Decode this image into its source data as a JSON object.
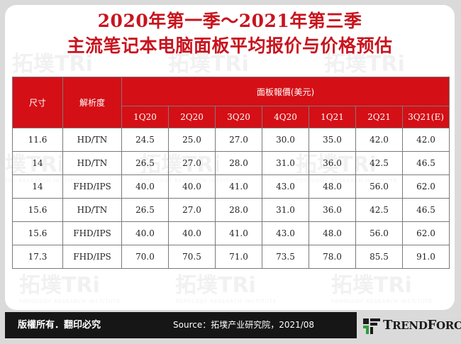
{
  "title": {
    "line1": "2020年第一季～2021年第三季",
    "line2": "主流笔记本电脑面板平均报价与价格预估"
  },
  "watermark_text": "拓墣TRi",
  "watermark_subtext": "TOPOLOGY RESEARCH INSTITUTE",
  "table": {
    "header_size": "尺寸",
    "header_resolution": "解析度",
    "header_price": "面板報價(美元)",
    "quarters": [
      "1Q20",
      "2Q20",
      "3Q20",
      "4Q20",
      "1Q21",
      "2Q21",
      "3Q21(E)"
    ],
    "rows": [
      {
        "size": "11.6",
        "resolution": "HD/TN",
        "prices": [
          "24.5",
          "25.0",
          "27.0",
          "30.0",
          "35.0",
          "42.0",
          "42.0"
        ]
      },
      {
        "size": "14",
        "resolution": "HD/TN",
        "prices": [
          "26.5",
          "27.0",
          "28.0",
          "31.0",
          "36.0",
          "42.5",
          "46.5"
        ]
      },
      {
        "size": "14",
        "resolution": "FHD/IPS",
        "prices": [
          "40.0",
          "40.0",
          "41.0",
          "43.0",
          "48.0",
          "56.0",
          "62.0"
        ]
      },
      {
        "size": "15.6",
        "resolution": "HD/TN",
        "prices": [
          "26.5",
          "27.0",
          "28.0",
          "31.0",
          "36.0",
          "42.5",
          "46.5"
        ]
      },
      {
        "size": "15.6",
        "resolution": "FHD/IPS",
        "prices": [
          "40.0",
          "40.0",
          "41.0",
          "43.0",
          "48.0",
          "56.0",
          "62.0"
        ]
      },
      {
        "size": "17.3",
        "resolution": "FHD/IPS",
        "prices": [
          "70.0",
          "70.5",
          "71.0",
          "73.5",
          "78.0",
          "85.5",
          "91.0"
        ]
      }
    ]
  },
  "footer": {
    "copyright": "版權所有．翻印必究",
    "source": "Source：拓墣产业研究院，2021/08"
  },
  "brand": {
    "name_big_T": "T",
    "name_rest1": "REND",
    "name_big_F": "F",
    "name_rest2": "ORCE",
    "logo_icon": "trendforce-logo-icon"
  },
  "colors": {
    "title": "#c8141e",
    "header_bg": "#d50f16",
    "footer_bg": "#161616",
    "background": "#dadada"
  }
}
